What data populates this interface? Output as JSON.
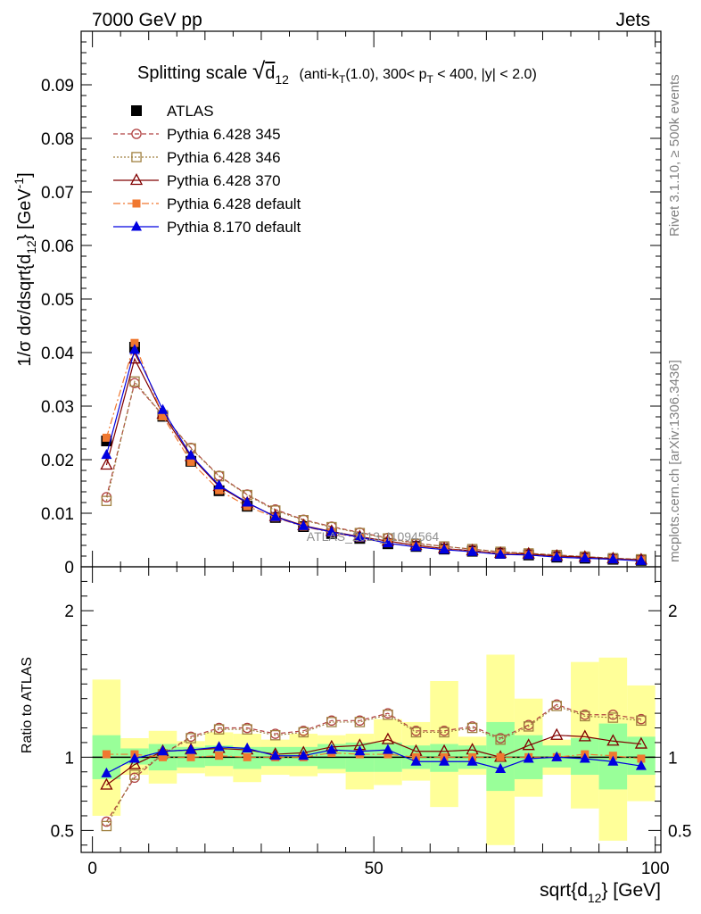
{
  "header": {
    "left": "7000 GeV pp",
    "right": "Jets"
  },
  "side_labels": {
    "rivet": "Rivet 3.1.10, ≥ 500k events",
    "mcplots": "mcplots.cern.ch [arXiv:1306.3436]"
  },
  "watermark": "ATLAS_2013_I1094564",
  "chart_data": [
    {
      "type": "line",
      "panel": "main",
      "title": "Splitting scale",
      "title_symbol": "√",
      "title_sym_arg": "d",
      "title_sym_sub": "12",
      "title_details": [
        {
          "t": "(anti-k"
        },
        {
          "t": "T",
          "sub": true
        },
        {
          "t": "(1.0), 300< p"
        },
        {
          "t": "T",
          "sub": true
        },
        {
          "t": " < 400, |y| < 2.0)"
        }
      ],
      "ylabel": "1/σ dσ/dsqrt{d",
      "ylabel_sub": "12",
      "ylabel_tail": "} [GeV",
      "ylabel_sup": "-1",
      "ylabel_end": "]",
      "xlim": [
        -2,
        101
      ],
      "ylim": [
        0,
        0.1
      ],
      "yticks": [
        0,
        0.01,
        0.02,
        0.03,
        0.04,
        0.05,
        0.06,
        0.07,
        0.08,
        0.09
      ],
      "ytick_labels": [
        "0",
        "0.01",
        "0.02",
        "0.03",
        "0.04",
        "0.05",
        "0.06",
        "0.07",
        "0.08",
        "0.09"
      ],
      "legend_position": "top-left",
      "x": [
        2.5,
        7.5,
        12.5,
        17.5,
        22.5,
        27.5,
        32.5,
        37.5,
        42.5,
        47.5,
        52.5,
        57.5,
        62.5,
        67.5,
        72.5,
        77.5,
        82.5,
        87.5,
        92.5,
        97.5
      ],
      "series": [
        {
          "name": "ATLAS",
          "color": "#000000",
          "marker": "square-filled",
          "line": "none",
          "values": [
            0.0235,
            0.041,
            0.0281,
            0.0197,
            0.0142,
            0.0113,
            0.0092,
            0.0075,
            0.0062,
            0.0053,
            0.0043,
            0.0038,
            0.0033,
            0.0029,
            0.0025,
            0.0022,
            0.0018,
            0.0016,
            0.0014,
            0.0012
          ]
        },
        {
          "name": "Pythia 6.428 345",
          "color": "#b04040",
          "marker": "circle-open",
          "line": "dashed",
          "values": [
            0.013,
            0.0343,
            0.0283,
            0.0222,
            0.017,
            0.0135,
            0.0107,
            0.0088,
            0.0075,
            0.0064,
            0.0054,
            0.0044,
            0.0038,
            0.0033,
            0.0028,
            0.0025,
            0.0022,
            0.0019,
            0.0016,
            0.0014
          ]
        },
        {
          "name": "Pythia 6.428 346",
          "color": "#a08040",
          "marker": "square-open",
          "line": "dotted",
          "values": [
            0.0123,
            0.0346,
            0.0283,
            0.0221,
            0.0169,
            0.0134,
            0.0105,
            0.0087,
            0.0074,
            0.0063,
            0.0053,
            0.0043,
            0.0038,
            0.0033,
            0.0028,
            0.0025,
            0.0022,
            0.0019,
            0.0016,
            0.0014
          ]
        },
        {
          "name": "Pythia 6.428 370",
          "color": "#800000",
          "marker": "triangle-open",
          "line": "solid",
          "values": [
            0.019,
            0.0388,
            0.0285,
            0.0206,
            0.015,
            0.0119,
            0.0094,
            0.0077,
            0.0066,
            0.0056,
            0.0048,
            0.004,
            0.0034,
            0.003,
            0.0025,
            0.0024,
            0.002,
            0.0018,
            0.0015,
            0.0013
          ]
        },
        {
          "name": "Pythia 6.428 default",
          "color": "#f07830",
          "marker": "square-filled-small",
          "line": "dashdot",
          "values": [
            0.0241,
            0.0418,
            0.0281,
            0.0196,
            0.0143,
            0.0113,
            0.0092,
            0.0075,
            0.0064,
            0.0054,
            0.0044,
            0.0038,
            0.0033,
            0.0029,
            0.0025,
            0.0022,
            0.0018,
            0.0016,
            0.0014,
            0.0012
          ]
        },
        {
          "name": "Pythia 8.170 default",
          "color": "#0000e0",
          "marker": "triangle-filled",
          "line": "solid",
          "values": [
            0.0209,
            0.0405,
            0.0293,
            0.0208,
            0.0152,
            0.012,
            0.0093,
            0.0076,
            0.0065,
            0.0055,
            0.0044,
            0.0037,
            0.0032,
            0.0028,
            0.0023,
            0.0022,
            0.0018,
            0.0016,
            0.0014,
            0.0011
          ]
        }
      ]
    },
    {
      "type": "line",
      "panel": "ratio",
      "ylabel": "Ratio to ATLAS",
      "xlabel": "sqrt{d",
      "xlabel_sub": "12",
      "xlabel_tail": "} [GeV]",
      "xlim": [
        -2,
        101
      ],
      "ylim": [
        0.35,
        2.3
      ],
      "xticks": [
        0,
        50,
        100
      ],
      "xtick_labels": [
        "0",
        "50",
        "100"
      ],
      "yticks": [
        0.5,
        1,
        2
      ],
      "ytick_labels": [
        "0.5",
        "1",
        "2"
      ],
      "band_colors": {
        "stat": "#99ff99",
        "total": "#ffff99"
      },
      "x": [
        2.5,
        7.5,
        12.5,
        17.5,
        22.5,
        27.5,
        32.5,
        37.5,
        42.5,
        47.5,
        52.5,
        57.5,
        62.5,
        67.5,
        72.5,
        77.5,
        82.5,
        87.5,
        92.5,
        97.5
      ],
      "stat_band": [
        [
          0.85,
          1.15
        ],
        [
          0.95,
          1.06
        ],
        [
          0.91,
          1.09
        ],
        [
          0.93,
          1.07
        ],
        [
          0.94,
          1.08
        ],
        [
          0.92,
          1.07
        ],
        [
          0.94,
          1.07
        ],
        [
          0.94,
          1.07
        ],
        [
          0.92,
          1.09
        ],
        [
          0.9,
          1.1
        ],
        [
          0.9,
          1.1
        ],
        [
          0.92,
          1.08
        ],
        [
          0.9,
          1.09
        ],
        [
          0.92,
          1.08
        ],
        [
          0.77,
          1.24
        ],
        [
          0.85,
          1.15
        ],
        [
          0.93,
          1.08
        ],
        [
          0.88,
          1.13
        ],
        [
          0.78,
          1.23
        ],
        [
          0.88,
          1.14
        ]
      ],
      "total_band": [
        [
          0.6,
          1.53
        ],
        [
          0.88,
          1.13
        ],
        [
          0.82,
          1.18
        ],
        [
          0.89,
          1.11
        ],
        [
          0.87,
          1.17
        ],
        [
          0.83,
          1.16
        ],
        [
          0.88,
          1.12
        ],
        [
          0.87,
          1.16
        ],
        [
          0.89,
          1.15
        ],
        [
          0.78,
          1.16
        ],
        [
          0.81,
          1.26
        ],
        [
          0.84,
          1.24
        ],
        [
          0.66,
          1.52
        ],
        [
          0.88,
          1.14
        ],
        [
          0.4,
          1.7
        ],
        [
          0.73,
          1.4
        ],
        [
          0.88,
          1.12
        ],
        [
          0.65,
          1.65
        ],
        [
          0.43,
          1.68
        ],
        [
          0.7,
          1.49
        ]
      ],
      "series": [
        {
          "name": "Pythia 6.428 345",
          "color": "#b04040",
          "marker": "circle-open",
          "line": "dashed",
          "values": [
            0.56,
            0.86,
            1.02,
            1.14,
            1.2,
            1.2,
            1.16,
            1.18,
            1.25,
            1.25,
            1.3,
            1.18,
            1.18,
            1.21,
            1.13,
            1.22,
            1.36,
            1.29,
            1.29,
            1.26
          ]
        },
        {
          "name": "Pythia 6.428 346",
          "color": "#a08040",
          "marker": "square-open",
          "line": "dotted",
          "values": [
            0.53,
            0.88,
            1.02,
            1.13,
            1.19,
            1.19,
            1.15,
            1.17,
            1.24,
            1.24,
            1.29,
            1.17,
            1.17,
            1.2,
            1.12,
            1.21,
            1.35,
            1.28,
            1.27,
            1.25
          ]
        },
        {
          "name": "Pythia 6.428 370",
          "color": "#800000",
          "marker": "triangle-open",
          "line": "solid",
          "values": [
            0.81,
            0.95,
            1.04,
            1.05,
            1.06,
            1.05,
            1.02,
            1.03,
            1.07,
            1.08,
            1.12,
            1.04,
            1.04,
            1.05,
            1.0,
            1.08,
            1.15,
            1.14,
            1.11,
            1.09
          ]
        },
        {
          "name": "Pythia 6.428 default",
          "color": "#f07830",
          "marker": "square-filled-small",
          "line": "dashdot",
          "values": [
            1.02,
            1.02,
            1.0,
            1.0,
            1.01,
            1.0,
            1.0,
            1.0,
            1.03,
            1.02,
            1.02,
            1.0,
            1.0,
            1.0,
            1.0,
            1.0,
            1.0,
            1.02,
            1.01,
            0.99
          ]
        },
        {
          "name": "Pythia 8.170 default",
          "color": "#0000e0",
          "marker": "triangle-filled",
          "line": "solid",
          "values": [
            0.89,
            0.99,
            1.04,
            1.05,
            1.07,
            1.06,
            1.01,
            1.01,
            1.05,
            1.04,
            1.05,
            0.97,
            0.97,
            0.97,
            0.92,
            0.99,
            1.0,
            0.99,
            0.97,
            0.94
          ]
        }
      ]
    }
  ]
}
